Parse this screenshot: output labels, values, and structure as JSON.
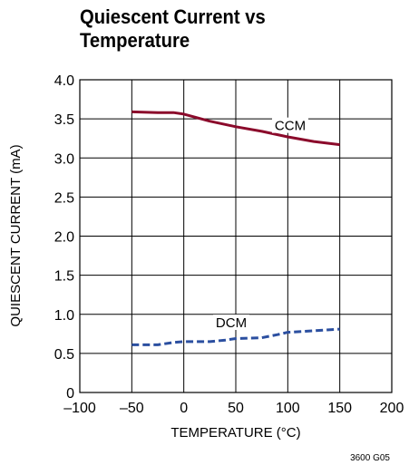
{
  "title": "Quiescent Current vs Temperature",
  "figure_code": "3600 G05",
  "chart_data": {
    "type": "line",
    "title": "Quiescent Current vs Temperature",
    "xlabel": "TEMPERATURE (°C)",
    "ylabel": "QUIESCENT CURRENT (mA)",
    "xlim": [
      -100,
      200
    ],
    "ylim": [
      0,
      4.0
    ],
    "x_ticks": [
      -100,
      -50,
      0,
      50,
      100,
      150,
      200
    ],
    "x_tick_labels": [
      "–100",
      "–50",
      "0",
      "50",
      "100",
      "150",
      "200"
    ],
    "y_ticks": [
      0,
      0.5,
      1.0,
      1.5,
      2.0,
      2.5,
      3.0,
      3.5,
      4.0
    ],
    "y_tick_labels": [
      "0",
      "0.5",
      "1.0",
      "1.5",
      "2.0",
      "2.5",
      "3.0",
      "3.5",
      "4.0"
    ],
    "grid": true,
    "series": [
      {
        "name": "CCM",
        "color": "#8b0a2b",
        "style": "solid",
        "x": [
          -50,
          -25,
          -10,
          0,
          25,
          50,
          75,
          100,
          125,
          150
        ],
        "y": [
          3.59,
          3.58,
          3.58,
          3.56,
          3.47,
          3.4,
          3.34,
          3.27,
          3.21,
          3.17
        ]
      },
      {
        "name": "DCM",
        "color": "#2b4fa0",
        "style": "dashed",
        "x": [
          -50,
          -25,
          -10,
          0,
          25,
          40,
          50,
          75,
          90,
          100,
          125,
          150
        ],
        "y": [
          0.61,
          0.61,
          0.64,
          0.65,
          0.65,
          0.67,
          0.69,
          0.7,
          0.74,
          0.77,
          0.79,
          0.81
        ]
      }
    ]
  }
}
